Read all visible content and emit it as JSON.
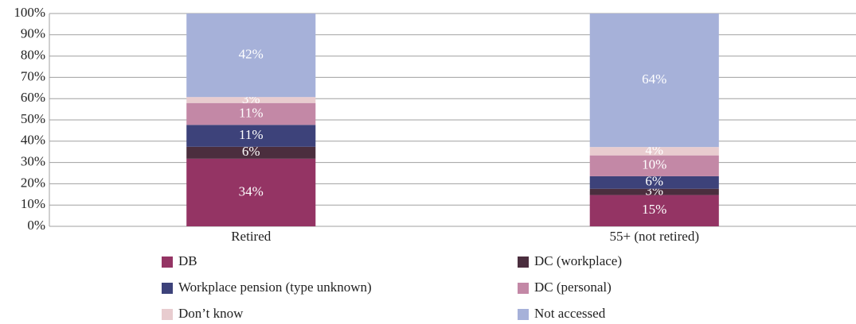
{
  "chart_data": {
    "type": "bar",
    "stacking": "percent",
    "categories": [
      "Retired",
      "55+ (not retired)"
    ],
    "series": [
      {
        "name": "DB",
        "color": "#943464",
        "values": [
          34,
          15
        ],
        "value_labels": [
          "34%",
          "15%"
        ]
      },
      {
        "name": "DC (workplace)",
        "color": "#4b2e3e",
        "values": [
          6,
          3
        ],
        "value_labels": [
          "6%",
          "3%"
        ]
      },
      {
        "name": "Workplace pension (type unknown)",
        "color": "#3d427a",
        "values": [
          11,
          6
        ],
        "value_labels": [
          "11%",
          "6%"
        ]
      },
      {
        "name": "DC (personal)",
        "color": "#c388a6",
        "values": [
          11,
          10
        ],
        "value_labels": [
          "11%",
          "10%"
        ]
      },
      {
        "name": "Don’t know",
        "color": "#e8cccf",
        "values": [
          3,
          4
        ],
        "value_labels": [
          "3%",
          "4%"
        ]
      },
      {
        "name": "Not accessed",
        "color": "#a6b1d9",
        "values": [
          42,
          64
        ],
        "value_labels": [
          "42%",
          "64%"
        ]
      }
    ],
    "ylim": [
      0,
      100
    ],
    "yticks": [
      {
        "value": 0,
        "label": "0%"
      },
      {
        "value": 10,
        "label": "10%"
      },
      {
        "value": 20,
        "label": "20%"
      },
      {
        "value": 30,
        "label": "30%"
      },
      {
        "value": 40,
        "label": "40%"
      },
      {
        "value": 50,
        "label": "50%"
      },
      {
        "value": 60,
        "label": "60%"
      },
      {
        "value": 70,
        "label": "70%"
      },
      {
        "value": 80,
        "label": "80%"
      },
      {
        "value": 90,
        "label": "90%"
      },
      {
        "value": 100,
        "label": "100%"
      }
    ],
    "grid": true,
    "legend": "bottom"
  }
}
